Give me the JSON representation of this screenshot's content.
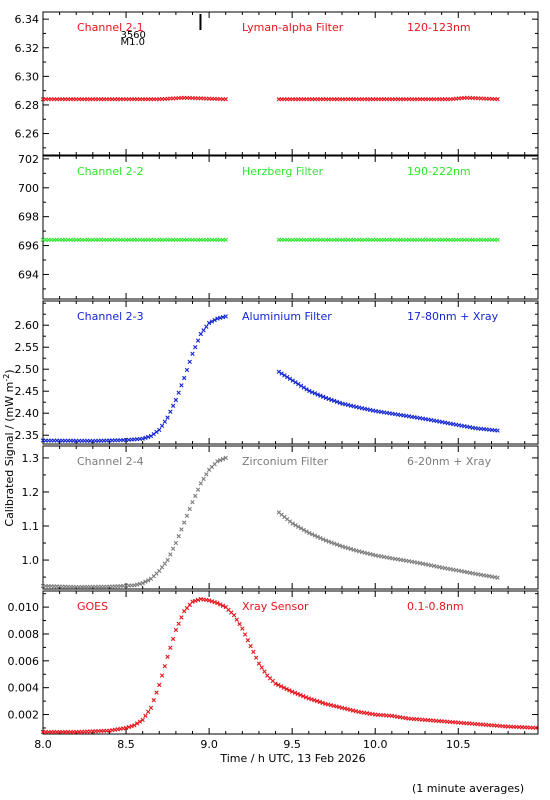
{
  "chart_data": {
    "type": "scatter",
    "xlabel": "Time / h UTC, 13 Feb 2026",
    "ylabel": "Calibrated Signal / (mW m",
    "ylabel_sup": "-2",
    "ylabel_close": ")",
    "footnote": "(1 minute averages)",
    "xlim": [
      8.0,
      10.98
    ],
    "xticks": [
      8.0,
      8.5,
      9.0,
      9.5,
      10.0,
      10.5
    ],
    "xtick_labels": [
      "8.0",
      "8.5",
      "9.0",
      "9.5",
      "10.0",
      "10.5"
    ],
    "grid": false,
    "flare_marker": {
      "x": 8.96,
      "class_label": "M1.0",
      "region_label": "3560"
    },
    "panels": [
      {
        "channel": "Channel 2-1",
        "filter": "Lyman-alpha Filter",
        "band": "120-123nm",
        "color": "#e8141c",
        "ylim": [
          6.245,
          6.345
        ],
        "yticks": [
          6.26,
          6.28,
          6.3,
          6.32,
          6.34
        ],
        "ytick_labels": [
          "6.26",
          "6.28",
          "6.30",
          "6.32",
          "6.34"
        ],
        "segments": [
          {
            "x": [
              8.0,
              8.4,
              8.7,
              8.85,
              9.1
            ],
            "y": [
              6.284,
              6.284,
              6.284,
              6.285,
              6.284
            ]
          },
          {
            "x": [
              9.42,
              9.8,
              10.2,
              10.45,
              10.55,
              10.75
            ],
            "y": [
              6.284,
              6.284,
              6.284,
              6.284,
              6.285,
              6.284
            ]
          }
        ]
      },
      {
        "channel": "Channel 2-2",
        "filter": "Herzberg Filter",
        "band": "190-222nm",
        "color": "#2de52d",
        "ylim": [
          692.3,
          702.2
        ],
        "yticks": [
          694,
          696,
          698,
          700,
          702
        ],
        "ytick_labels": [
          "694",
          "696",
          "698",
          "700",
          "702"
        ],
        "segments": [
          {
            "x": [
              8.0,
              9.1
            ],
            "y": [
              696.4,
              696.4
            ]
          },
          {
            "x": [
              9.42,
              10.75
            ],
            "y": [
              696.4,
              696.4
            ]
          }
        ]
      },
      {
        "channel": "Channel 2-3",
        "filter": "Aluminium Filter",
        "band": "17-80nm + Xray",
        "color": "#1426d2",
        "ylim": [
          2.33,
          2.655
        ],
        "yticks": [
          2.35,
          2.4,
          2.45,
          2.5,
          2.55,
          2.6
        ],
        "ytick_labels": [
          "2.35",
          "2.40",
          "2.45",
          "2.50",
          "2.55",
          "2.60"
        ],
        "segments": [
          {
            "x": [
              8.0,
              8.3,
              8.5,
              8.6,
              8.65,
              8.7,
              8.75,
              8.8,
              8.85,
              8.9,
              8.95,
              9.0,
              9.05,
              9.1
            ],
            "y": [
              2.338,
              2.337,
              2.339,
              2.342,
              2.348,
              2.362,
              2.39,
              2.43,
              2.48,
              2.535,
              2.58,
              2.605,
              2.615,
              2.62
            ]
          },
          {
            "x": [
              9.42,
              9.5,
              9.6,
              9.7,
              9.8,
              9.9,
              10.0,
              10.1,
              10.2,
              10.3,
              10.4,
              10.5,
              10.6,
              10.75
            ],
            "y": [
              2.494,
              2.475,
              2.451,
              2.435,
              2.422,
              2.413,
              2.405,
              2.399,
              2.393,
              2.387,
              2.38,
              2.373,
              2.366,
              2.36
            ]
          }
        ]
      },
      {
        "channel": "Channel 2-4",
        "filter": "Zirconium Filter",
        "band": "6-20nm + Xray",
        "color": "#7c7c7c",
        "ylim": [
          0.915,
          1.335
        ],
        "yticks": [
          1.0,
          1.1,
          1.2,
          1.3
        ],
        "ytick_labels": [
          "1.0",
          "1.1",
          "1.2",
          "1.3"
        ],
        "segments": [
          {
            "x": [
              8.0,
              8.2,
              8.4,
              8.55,
              8.6,
              8.65,
              8.7,
              8.75,
              8.8,
              8.85,
              8.9,
              8.95,
              9.0,
              9.05,
              9.1
            ],
            "y": [
              0.924,
              0.921,
              0.922,
              0.926,
              0.932,
              0.945,
              0.968,
              1.0,
              1.05,
              1.11,
              1.17,
              1.225,
              1.265,
              1.29,
              1.3
            ]
          },
          {
            "x": [
              9.42,
              9.5,
              9.6,
              9.7,
              9.8,
              9.9,
              10.0,
              10.1,
              10.2,
              10.3,
              10.4,
              10.5,
              10.6,
              10.75
            ],
            "y": [
              1.14,
              1.108,
              1.08,
              1.058,
              1.04,
              1.026,
              1.014,
              1.005,
              0.997,
              0.988,
              0.978,
              0.969,
              0.96,
              0.947
            ]
          }
        ]
      },
      {
        "channel": "GOES",
        "filter": "Xray Sensor",
        "band": "0.1-0.8nm",
        "color": "#e8141c",
        "ylim": [
          0.00055,
          0.0112
        ],
        "yticks": [
          0.002,
          0.004,
          0.006,
          0.008,
          0.01
        ],
        "ytick_labels": [
          "0.002",
          "0.004",
          "0.006",
          "0.008",
          "0.010"
        ],
        "segments": [
          {
            "x": [
              8.0,
              8.2,
              8.4,
              8.5,
              8.55,
              8.6,
              8.65,
              8.7,
              8.75,
              8.8,
              8.85,
              8.9,
              8.95,
              9.0,
              9.05,
              9.1,
              9.15,
              9.2,
              9.25,
              9.3,
              9.35,
              9.4,
              9.5,
              9.6,
              9.7,
              9.8,
              9.9,
              10.0,
              10.1,
              10.2,
              10.4,
              10.6,
              10.8,
              10.98
            ],
            "y": [
              0.0007,
              0.0007,
              0.0008,
              0.001,
              0.0012,
              0.0016,
              0.0025,
              0.0042,
              0.0063,
              0.0083,
              0.0097,
              0.0104,
              0.0106,
              0.0105,
              0.0103,
              0.01,
              0.0094,
              0.0084,
              0.0071,
              0.0058,
              0.0049,
              0.0043,
              0.0037,
              0.0032,
              0.0028,
              0.0025,
              0.0022,
              0.002,
              0.0019,
              0.0017,
              0.0015,
              0.0013,
              0.0011,
              0.001
            ]
          }
        ]
      }
    ]
  }
}
